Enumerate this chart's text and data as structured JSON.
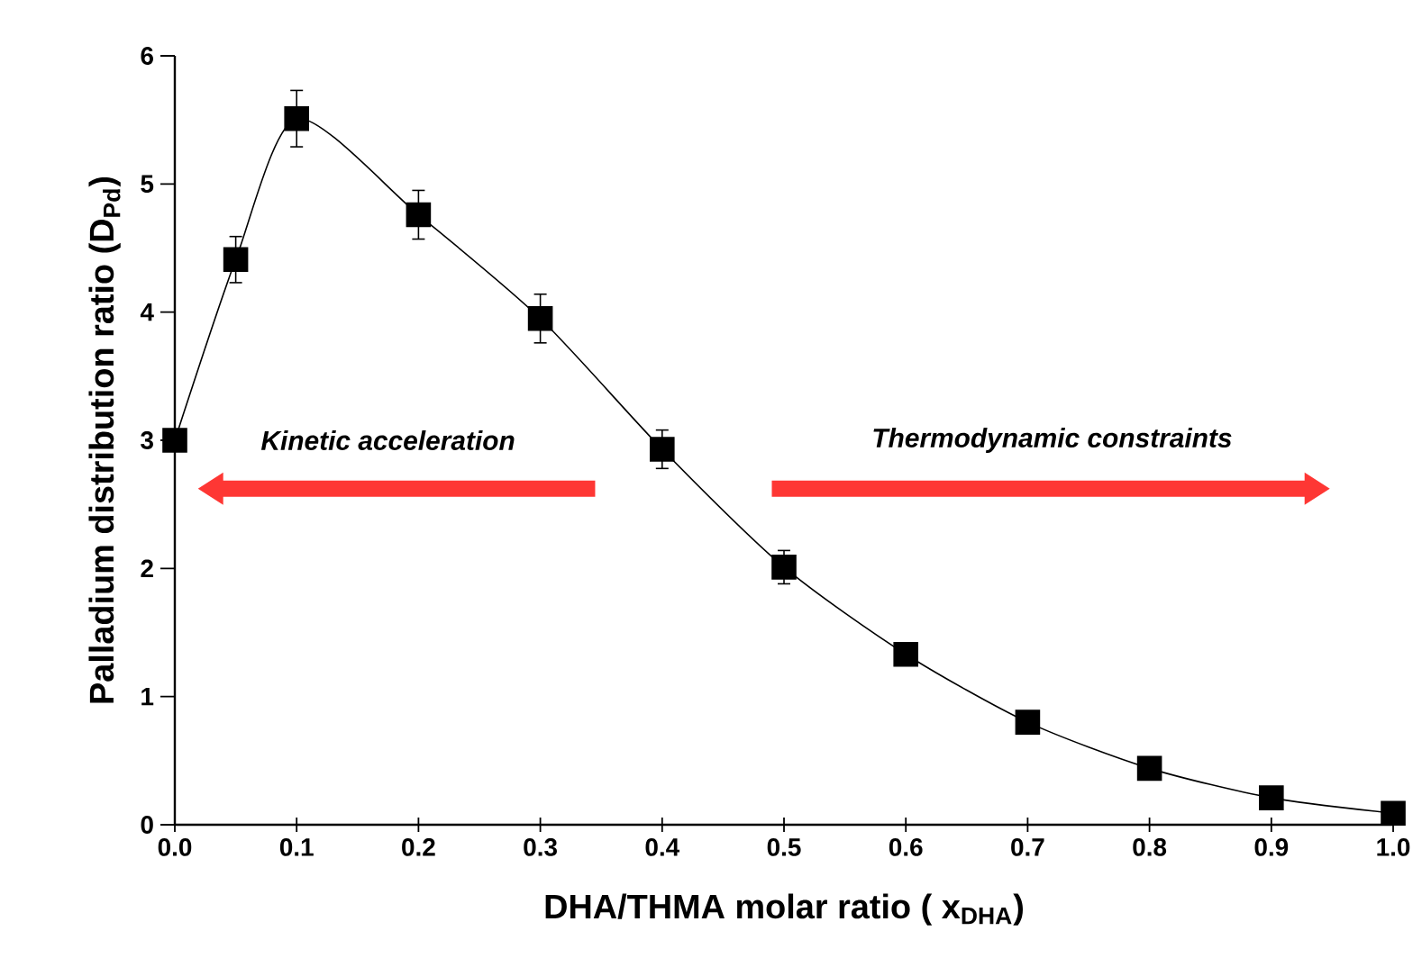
{
  "chart_data": {
    "type": "line",
    "xlabel": "DHA/THMA molar ratio ( x$_{DHA}$)",
    "ylabel": "Palladium distribution ratio (D$_{Pd}$)",
    "x": [
      0,
      0.05,
      0.1,
      0.2,
      0.3,
      0.4,
      0.5,
      0.6,
      0.7,
      0.8,
      0.9,
      1.0
    ],
    "series": [
      {
        "color": "#000000",
        "values": [
          3.0,
          4.41,
          5.51,
          4.76,
          3.95,
          2.93,
          2.01,
          1.33,
          0.8,
          0.44,
          0.21,
          0.09
        ],
        "errors": [
          null,
          0.18,
          0.22,
          0.19,
          0.19,
          0.15,
          0.13,
          null,
          null,
          null,
          null,
          null
        ]
      }
    ],
    "xlim": [
      0,
      1
    ],
    "ylim": [
      0,
      6
    ],
    "xticks": [
      {
        "value": 0,
        "label": "0.0"
      },
      {
        "value": 0.1,
        "label": "0.1"
      },
      {
        "value": 0.2,
        "label": "0.2"
      },
      {
        "value": 0.3,
        "label": "0.3"
      },
      {
        "value": 0.4,
        "label": "0.4"
      },
      {
        "value": 0.5,
        "label": "0.5"
      },
      {
        "value": 0.6,
        "label": "0.6"
      },
      {
        "value": 0.7,
        "label": "0.7"
      },
      {
        "value": 0.8,
        "label": "0.8"
      },
      {
        "value": 0.9,
        "label": "0.9"
      },
      {
        "value": 1,
        "label": "1.0"
      }
    ],
    "yticks": [
      0,
      1,
      2,
      3,
      4,
      5,
      6
    ],
    "annotations": [
      "Kinetic acceleration",
      "Thermodynamic constraints"
    ],
    "marker": "square",
    "line_style": "solid"
  }
}
